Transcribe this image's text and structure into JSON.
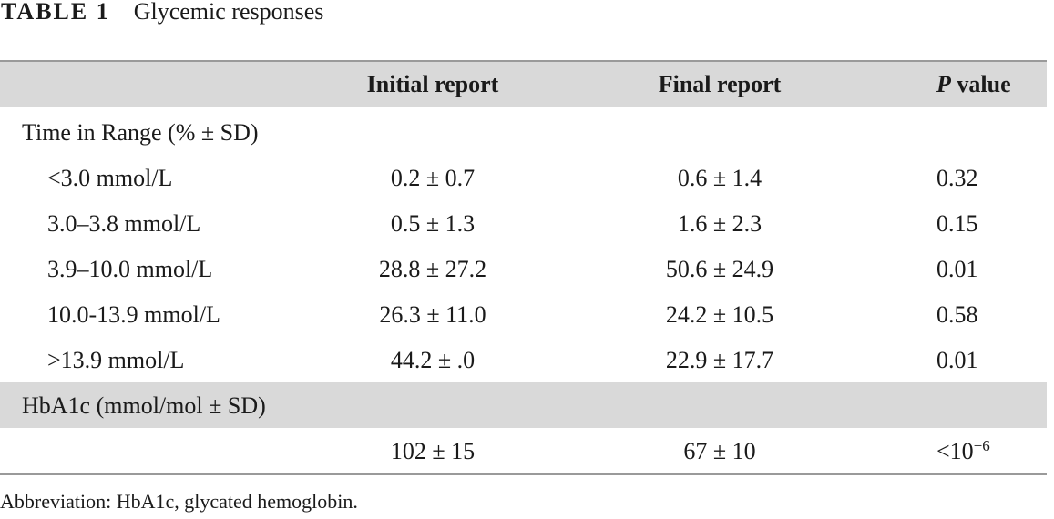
{
  "caption": {
    "label": "TABLE 1",
    "title": "Glycemic responses"
  },
  "header": {
    "col_initial": "Initial report",
    "col_final": "Final report",
    "col_p_italic": "P",
    "col_p_rest": " value"
  },
  "sections": [
    {
      "title": "Time in Range (% ± SD)",
      "rows": [
        {
          "label": "<3.0 mmol/L",
          "initial": "0.2 ± 0.7",
          "final": "0.6 ± 1.4",
          "p": "0.32"
        },
        {
          "label": "3.0–3.8 mmol/L",
          "initial": "0.5 ± 1.3",
          "final": "1.6 ± 2.3",
          "p": "0.15"
        },
        {
          "label": "3.9–10.0 mmol/L",
          "initial": "28.8 ± 27.2",
          "final": "50.6 ± 24.9",
          "p": "0.01"
        },
        {
          "label": "10.0-13.9 mmol/L",
          "initial": "26.3 ± 11.0",
          "final": "24.2 ± 10.5",
          "p": "0.58"
        },
        {
          "label": ">13.9 mmol/L",
          "initial": "44.2 ± .0",
          "final": "22.9 ± 17.7",
          "p": "0.01"
        }
      ]
    },
    {
      "title": "HbA1c (mmol/mol ± SD)",
      "rows": [
        {
          "label": "",
          "initial": "102 ± 15",
          "final": "67 ± 10",
          "p_base": "<10",
          "p_exp": "−6"
        }
      ]
    }
  ],
  "footnote": "Abbreviation: HbA1c, glycated hemoglobin."
}
